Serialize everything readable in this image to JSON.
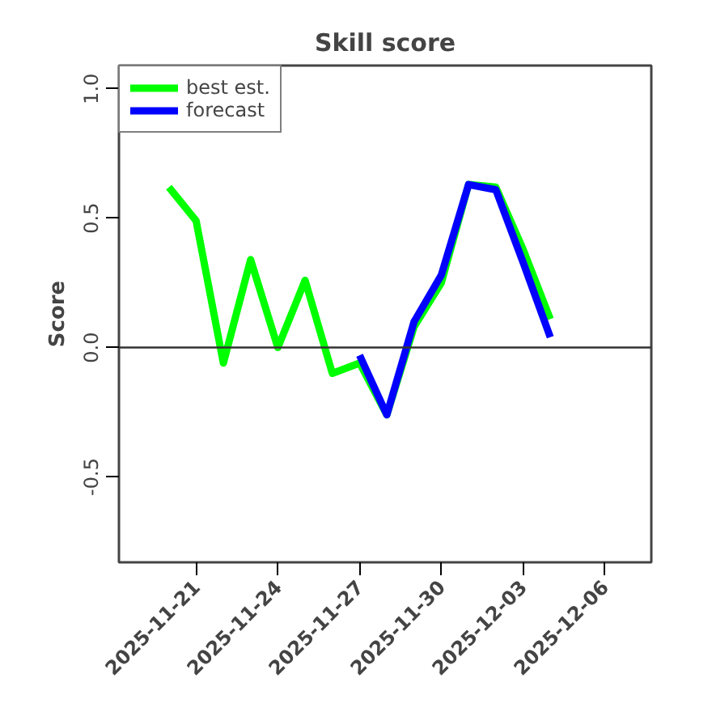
{
  "chart_data": {
    "type": "line",
    "title": "Skill score",
    "ylabel": "Score",
    "x": [
      "2025-11-20",
      "2025-11-21",
      "2025-11-22",
      "2025-11-23",
      "2025-11-24",
      "2025-11-25",
      "2025-11-26",
      "2025-11-27",
      "2025-11-28",
      "2025-11-29",
      "2025-11-30",
      "2025-12-01",
      "2025-12-02",
      "2025-12-03",
      "2025-12-04"
    ],
    "series": [
      {
        "name": "best est.",
        "color": "#00ff00",
        "values": [
          0.62,
          0.49,
          -0.06,
          0.34,
          0.0,
          0.26,
          -0.1,
          -0.06,
          -0.26,
          0.08,
          0.25,
          0.63,
          0.62,
          0.38,
          0.11
        ]
      },
      {
        "name": "forecast",
        "color": "#0000ff",
        "values": [
          null,
          null,
          null,
          null,
          null,
          null,
          null,
          -0.03,
          -0.26,
          0.1,
          0.28,
          0.63,
          0.61,
          0.33,
          0.04
        ]
      }
    ],
    "xlim": [
      "2025-11-18T04:00",
      "2025-12-07T17:00"
    ],
    "xticks": [
      {
        "value": "2025-11-21",
        "label": "2025-11-21"
      },
      {
        "value": "2025-11-24",
        "label": "2025-11-24"
      },
      {
        "value": "2025-11-27",
        "label": "2025-11-27"
      },
      {
        "value": "2025-11-30",
        "label": "2025-11-30"
      },
      {
        "value": "2025-12-03",
        "label": "2025-12-03"
      },
      {
        "value": "2025-12-06",
        "label": "2025-12-06"
      }
    ],
    "ylim": [
      -0.83,
      1.09
    ],
    "yticks": [
      {
        "value": -0.5,
        "label": "-0.5"
      },
      {
        "value": 0.0,
        "label": "0.0"
      },
      {
        "value": 0.5,
        "label": "0.5"
      },
      {
        "value": 1.0,
        "label": "1.0"
      }
    ],
    "ref_lines": [
      {
        "axis": "y",
        "value": 0,
        "color": "#333333"
      }
    ],
    "grid": false,
    "legend": "top left",
    "marker": "none",
    "line_style": "solid"
  }
}
